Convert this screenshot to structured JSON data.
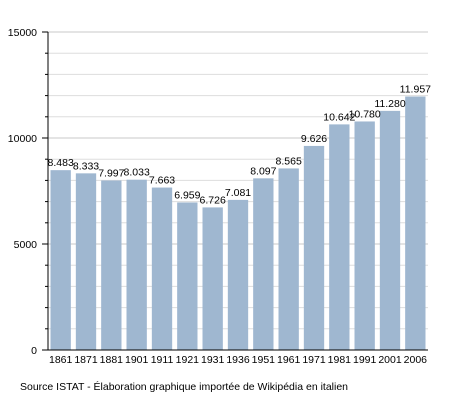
{
  "chart_data": {
    "type": "bar",
    "categories": [
      "1861",
      "1871",
      "1881",
      "1901",
      "1911",
      "1921",
      "1931",
      "1936",
      "1951",
      "1961",
      "1971",
      "1981",
      "1991",
      "2001",
      "2006"
    ],
    "values": [
      8483,
      8333,
      7997,
      8033,
      7663,
      6959,
      6726,
      7081,
      8097,
      8565,
      9626,
      10642,
      10780,
      11280,
      11957
    ],
    "value_labels": [
      "8.483",
      "8.333",
      "7.997",
      "8.033",
      "7.663",
      "6.959",
      "6.726",
      "7.081",
      "8.097",
      "8.565",
      "9.626",
      "10.642",
      "10.780",
      "11.280",
      "11.957"
    ],
    "ylim": [
      0,
      15000
    ],
    "yticks": [
      0,
      5000,
      10000,
      15000
    ],
    "ytick_labels": [
      "0",
      "5000",
      "10000",
      "15000"
    ],
    "grid": true,
    "bar_color": "#9fb7d0",
    "grid_color": "#dddddd"
  },
  "source": "Source ISTAT - Élaboration graphique importée de Wikipédia en italien"
}
